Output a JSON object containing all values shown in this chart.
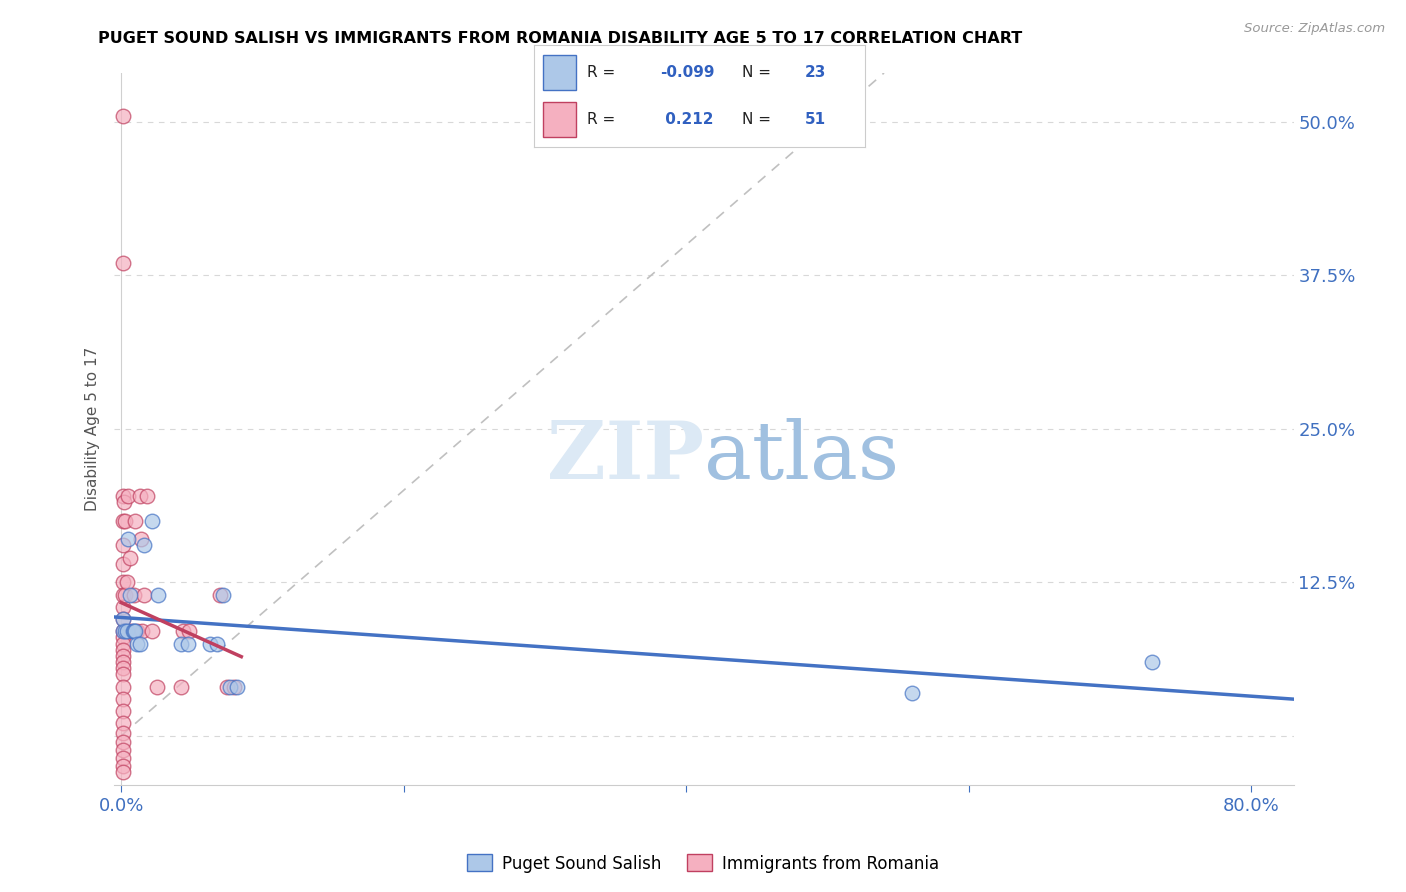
{
  "title": "PUGET SOUND SALISH VS IMMIGRANTS FROM ROMANIA DISABILITY AGE 5 TO 17 CORRELATION CHART",
  "source": "Source: ZipAtlas.com",
  "ylabel": "Disability Age 5 to 17",
  "legend_label1": "Puget Sound Salish",
  "legend_label2": "Immigrants from Romania",
  "r1": -0.099,
  "n1": 23,
  "r2": 0.212,
  "n2": 51,
  "color_blue": "#adc8e8",
  "color_pink": "#f5b0c0",
  "line_blue": "#4472c4",
  "line_pink": "#c04060",
  "xlim": [
    -0.005,
    0.83
  ],
  "ylim": [
    -0.04,
    0.54
  ],
  "x_ticks": [
    0.0,
    0.2,
    0.4,
    0.6,
    0.8
  ],
  "x_tick_labels": [
    "0.0%",
    "",
    "",
    "",
    "80.0%"
  ],
  "y_ticks": [
    0.0,
    0.125,
    0.25,
    0.375,
    0.5
  ],
  "y_tick_labels": [
    "",
    "12.5%",
    "25.0%",
    "37.5%",
    "50.0%"
  ],
  "blue_points": [
    [
      0.001,
      0.085
    ],
    [
      0.001,
      0.095
    ],
    [
      0.003,
      0.085
    ],
    [
      0.004,
      0.085
    ],
    [
      0.005,
      0.16
    ],
    [
      0.006,
      0.115
    ],
    [
      0.008,
      0.085
    ],
    [
      0.009,
      0.085
    ],
    [
      0.01,
      0.085
    ],
    [
      0.011,
      0.075
    ],
    [
      0.013,
      0.075
    ],
    [
      0.016,
      0.155
    ],
    [
      0.022,
      0.175
    ],
    [
      0.026,
      0.115
    ],
    [
      0.042,
      0.075
    ],
    [
      0.047,
      0.075
    ],
    [
      0.063,
      0.075
    ],
    [
      0.068,
      0.075
    ],
    [
      0.072,
      0.115
    ],
    [
      0.077,
      0.04
    ],
    [
      0.082,
      0.04
    ],
    [
      0.56,
      0.035
    ],
    [
      0.73,
      0.06
    ]
  ],
  "pink_points": [
    [
      0.001,
      0.505
    ],
    [
      0.001,
      0.385
    ],
    [
      0.001,
      0.195
    ],
    [
      0.001,
      0.175
    ],
    [
      0.001,
      0.155
    ],
    [
      0.001,
      0.14
    ],
    [
      0.001,
      0.125
    ],
    [
      0.001,
      0.115
    ],
    [
      0.001,
      0.105
    ],
    [
      0.001,
      0.095
    ],
    [
      0.001,
      0.085
    ],
    [
      0.001,
      0.08
    ],
    [
      0.001,
      0.075
    ],
    [
      0.001,
      0.07
    ],
    [
      0.001,
      0.065
    ],
    [
      0.001,
      0.06
    ],
    [
      0.001,
      0.055
    ],
    [
      0.001,
      0.05
    ],
    [
      0.001,
      0.04
    ],
    [
      0.001,
      0.03
    ],
    [
      0.001,
      0.02
    ],
    [
      0.001,
      0.01
    ],
    [
      0.001,
      0.002
    ],
    [
      0.001,
      -0.005
    ],
    [
      0.001,
      -0.012
    ],
    [
      0.001,
      -0.018
    ],
    [
      0.001,
      -0.025
    ],
    [
      0.001,
      -0.03
    ],
    [
      0.002,
      0.19
    ],
    [
      0.003,
      0.175
    ],
    [
      0.003,
      0.115
    ],
    [
      0.004,
      0.125
    ],
    [
      0.005,
      0.195
    ],
    [
      0.006,
      0.145
    ],
    [
      0.007,
      0.085
    ],
    [
      0.009,
      0.115
    ],
    [
      0.01,
      0.175
    ],
    [
      0.011,
      0.085
    ],
    [
      0.013,
      0.195
    ],
    [
      0.014,
      0.16
    ],
    [
      0.015,
      0.085
    ],
    [
      0.016,
      0.115
    ],
    [
      0.018,
      0.195
    ],
    [
      0.022,
      0.085
    ],
    [
      0.025,
      0.04
    ],
    [
      0.042,
      0.04
    ],
    [
      0.044,
      0.085
    ],
    [
      0.048,
      0.085
    ],
    [
      0.07,
      0.115
    ],
    [
      0.075,
      0.04
    ],
    [
      0.08,
      0.04
    ]
  ],
  "diag_line_x": [
    0.0,
    0.54
  ],
  "diag_line_y": [
    0.0,
    0.54
  ]
}
